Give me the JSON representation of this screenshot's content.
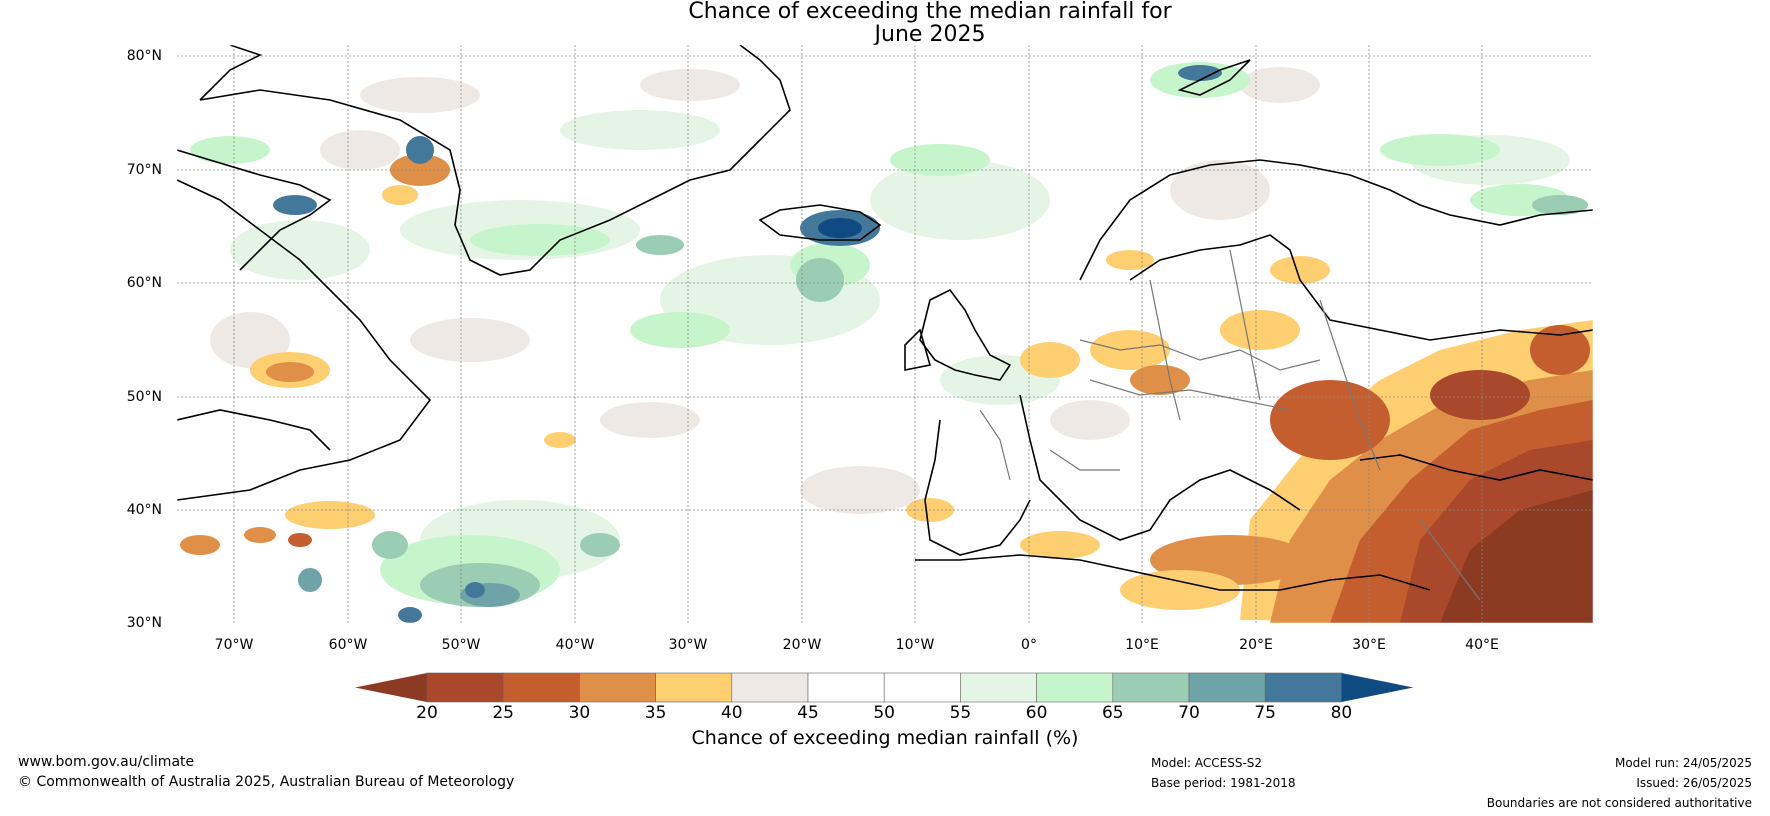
{
  "title_line1": "Chance of exceeding the median rainfall for",
  "title_line2": "June 2025",
  "latitude_labels": [
    "80°N",
    "70°N",
    "60°N",
    "50°N",
    "40°N",
    "30°N"
  ],
  "longitude_labels": [
    "70°W",
    "60°W",
    "50°W",
    "40°W",
    "30°W",
    "20°W",
    "10°W",
    "0°",
    "10°E",
    "20°E",
    "30°E",
    "40°E"
  ],
  "colorbar": {
    "title": "Chance of exceeding median rainfall (%)",
    "ticks": [
      "20",
      "25",
      "30",
      "35",
      "40",
      "45",
      "50",
      "55",
      "60",
      "65",
      "70",
      "75",
      "80"
    ],
    "colors": [
      "#8c3a22",
      "#a9482a",
      "#c45e2e",
      "#df8f48",
      "#fdcf71",
      "#efe9e5",
      "#ffffff",
      "#ffffff",
      "#e5f5e5",
      "#c6f5cc",
      "#9acdb4",
      "#6fa3a8",
      "#44789a",
      "#0f4a82"
    ]
  },
  "footer": {
    "website": "www.bom.gov.au/climate",
    "copyright": "© Commonwealth of Australia 2025, Australian Bureau of Meteorology",
    "model": "Model: ACCESS-S2",
    "base_period": "Base period: 1981-2018",
    "model_run": "Model run: 24/05/2025",
    "issued": "Issued: 26/05/2025",
    "boundaries_note": "Boundaries are not considered authoritative"
  }
}
